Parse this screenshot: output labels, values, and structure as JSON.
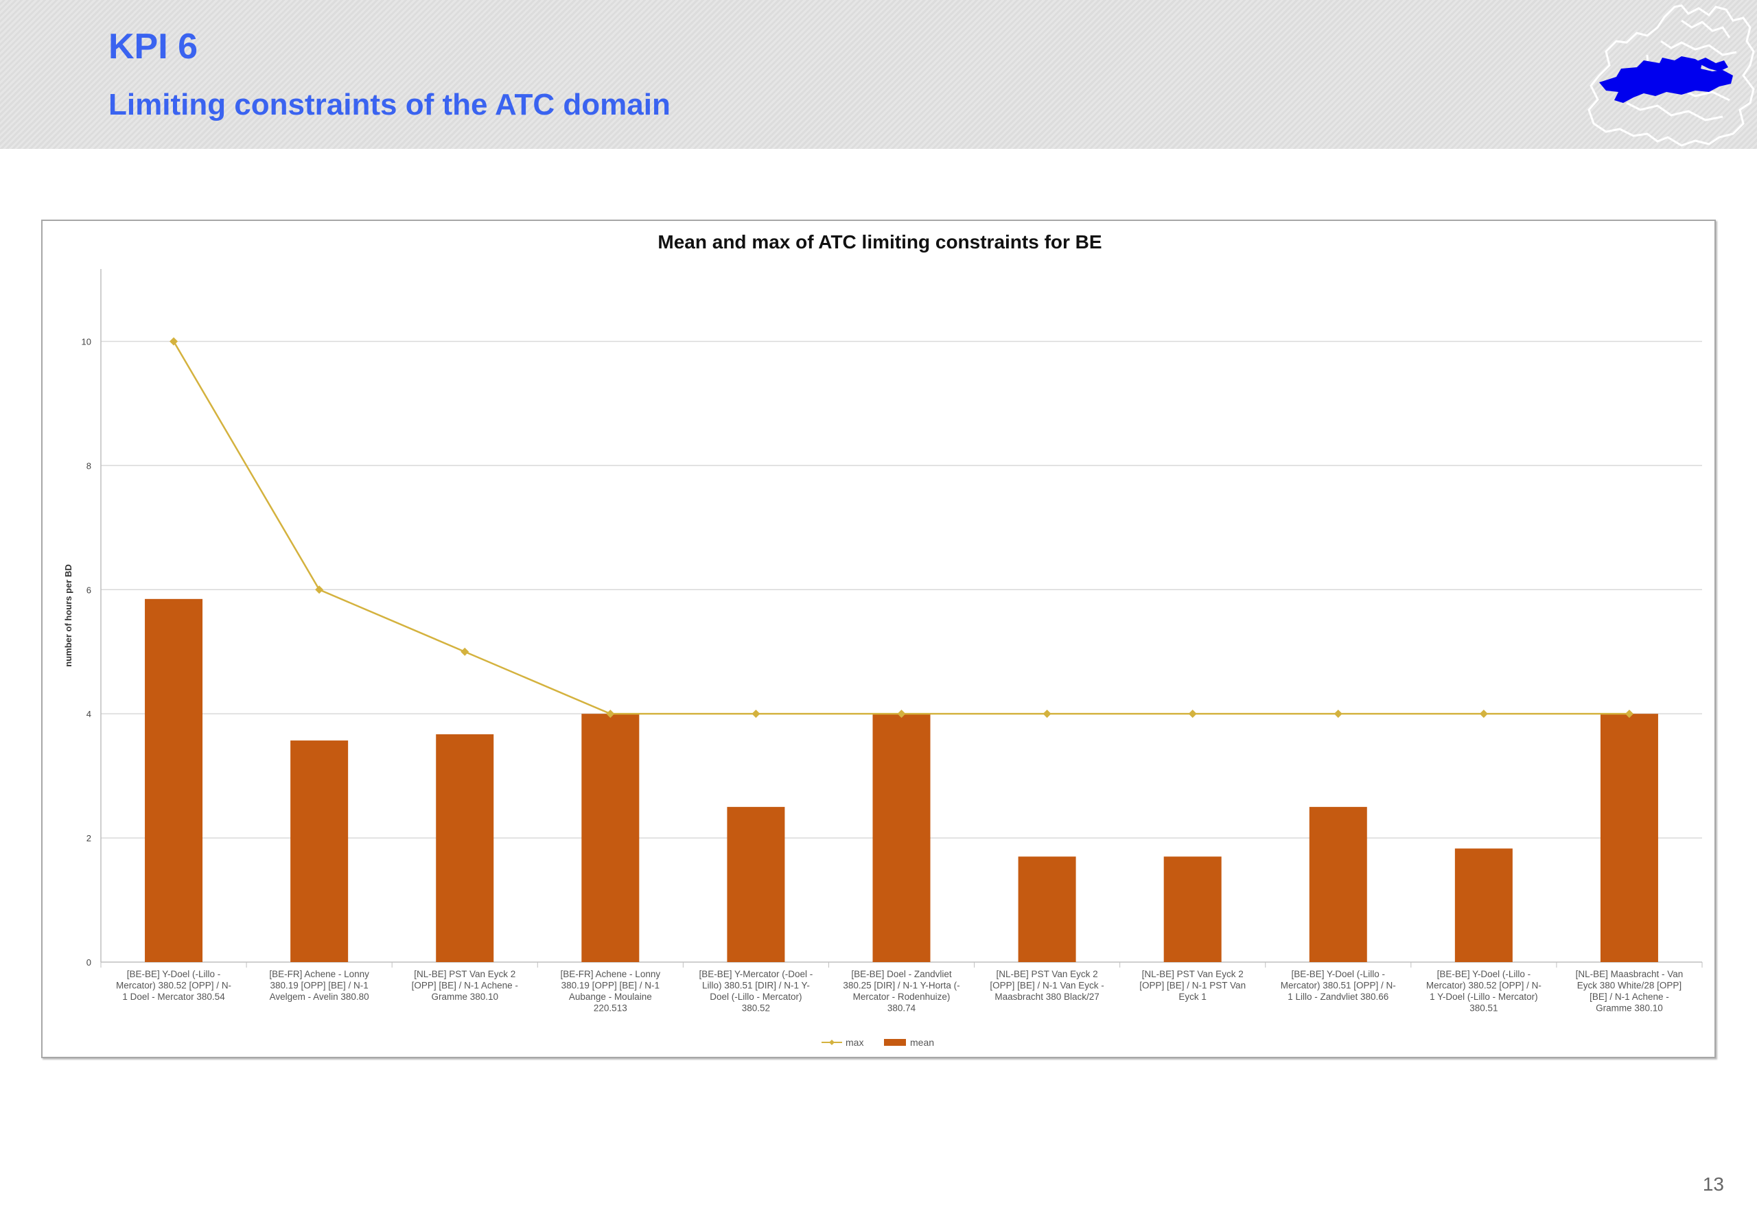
{
  "slide": {
    "title": "KPI 6",
    "subtitle": "Limiting constraints of the ATC domain",
    "page_number": "13"
  },
  "logo": {
    "name": "europe-map-logo",
    "color": "#0000ee"
  },
  "colors": {
    "title": "#3a63f0",
    "bar": "#c55a11",
    "line": "#d4b23e",
    "grid": "#d9d9d9"
  },
  "chart_data": {
    "type": "bar",
    "title": "Mean and max of ATC limiting constraints for BE",
    "xlabel": "",
    "ylabel": "number of hours per BD",
    "ylim": [
      0,
      11
    ],
    "yticks": [
      0,
      2,
      4,
      6,
      8,
      10
    ],
    "grid": true,
    "legend_position": "bottom",
    "categories": [
      [
        "[BE-BE] Y-Doel (-Lillo -",
        "Mercator) 380.52 [OPP] / N-",
        "1 Doel - Mercator 380.54"
      ],
      [
        "[BE-FR] Achene - Lonny",
        "380.19 [OPP] [BE] / N-1",
        "Avelgem - Avelin 380.80"
      ],
      [
        "[NL-BE] PST Van Eyck 2",
        "[OPP] [BE] / N-1 Achene -",
        "Gramme 380.10"
      ],
      [
        "[BE-FR] Achene - Lonny",
        "380.19 [OPP] [BE] / N-1",
        "Aubange - Moulaine",
        "220.513"
      ],
      [
        "[BE-BE] Y-Mercator (-Doel -",
        "Lillo) 380.51 [DIR] / N-1 Y-",
        "Doel (-Lillo - Mercator)",
        "380.52"
      ],
      [
        "[BE-BE] Doel - Zandvliet",
        "380.25 [DIR] / N-1 Y-Horta (-",
        "Mercator - Rodenhuize)",
        "380.74"
      ],
      [
        "[NL-BE] PST Van Eyck 2",
        "[OPP] [BE] / N-1 Van Eyck -",
        "Maasbracht 380 Black/27"
      ],
      [
        "[NL-BE] PST Van Eyck 2",
        "[OPP] [BE] / N-1 PST Van",
        "Eyck 1"
      ],
      [
        "[BE-BE] Y-Doel (-Lillo -",
        "Mercator) 380.51 [OPP] / N-",
        "1 Lillo - Zandvliet 380.66"
      ],
      [
        "[BE-BE] Y-Doel (-Lillo -",
        "Mercator) 380.52 [OPP] / N-",
        "1 Y-Doel (-Lillo - Mercator)",
        "380.51"
      ],
      [
        "[NL-BE] Maasbracht - Van",
        "Eyck 380 White/28 [OPP]",
        "[BE] / N-1 Achene -",
        "Gramme 380.10"
      ]
    ],
    "series": [
      {
        "name": "max",
        "kind": "line",
        "values": [
          10,
          6,
          5,
          4,
          4,
          4,
          4,
          4,
          4,
          4,
          4
        ]
      },
      {
        "name": "mean",
        "kind": "bar",
        "values": [
          5.85,
          3.57,
          3.67,
          4.0,
          2.5,
          4.0,
          1.7,
          1.7,
          2.5,
          1.83,
          4.0
        ]
      }
    ]
  }
}
